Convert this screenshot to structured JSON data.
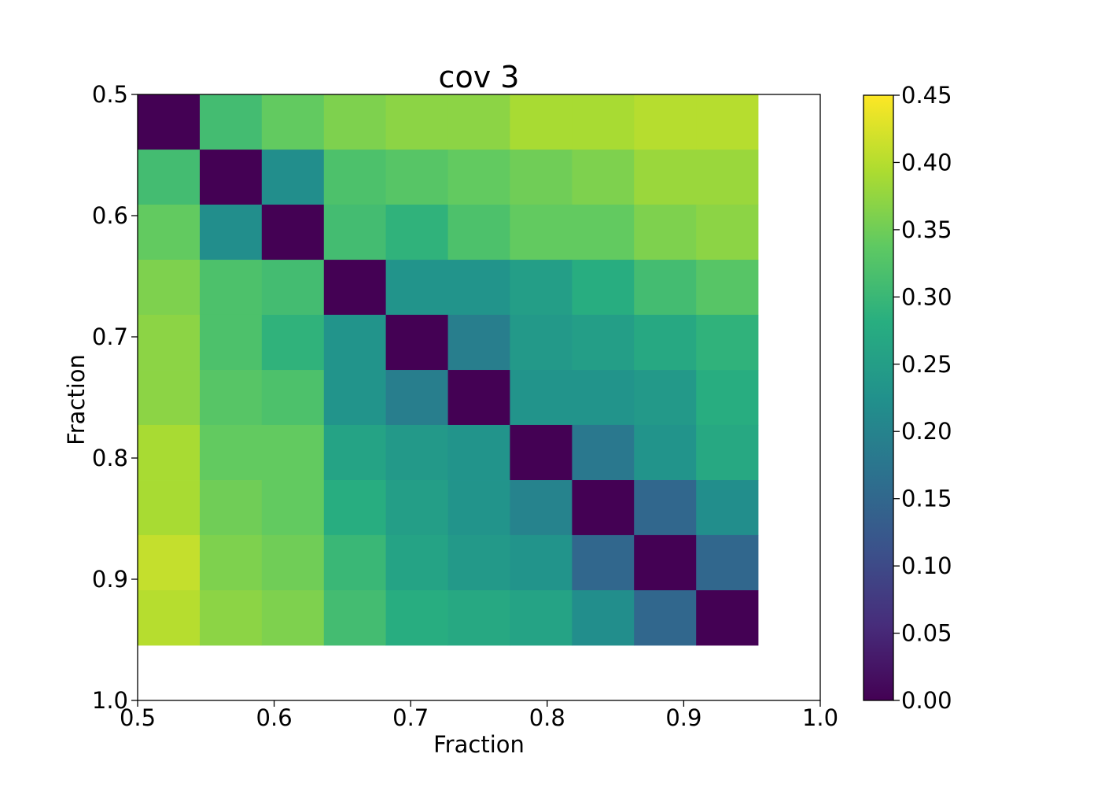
{
  "chart_data": {
    "type": "heatmap",
    "title": "cov 3",
    "xlabel": "Fraction",
    "ylabel": "Fraction",
    "xlim": [
      0.5,
      1.0
    ],
    "ylim": [
      1.0,
      0.5
    ],
    "x_ticks": [
      "0.5",
      "0.6",
      "0.7",
      "0.8",
      "0.9",
      "1.0"
    ],
    "y_ticks": [
      "0.5",
      "0.6",
      "0.7",
      "0.8",
      "0.9",
      "1.0"
    ],
    "x_edges": [
      0.5,
      0.5455,
      0.5909,
      0.6364,
      0.6818,
      0.7273,
      0.7727,
      0.8182,
      0.8636,
      0.9091,
      0.9545
    ],
    "y_edges": [
      0.5,
      0.5455,
      0.5909,
      0.6364,
      0.6818,
      0.7273,
      0.7727,
      0.8182,
      0.8636,
      0.9091,
      0.9545
    ],
    "colormap": "viridis",
    "colorbar": {
      "range": [
        0.0,
        0.45
      ],
      "ticks": [
        "0.00",
        "0.05",
        "0.10",
        "0.15",
        "0.20",
        "0.25",
        "0.30",
        "0.35",
        "0.40",
        "0.45"
      ]
    },
    "matrix": [
      [
        0.0,
        0.31,
        0.34,
        0.36,
        0.37,
        0.37,
        0.39,
        0.39,
        0.4,
        0.4
      ],
      [
        0.31,
        0.0,
        0.22,
        0.32,
        0.33,
        0.34,
        0.35,
        0.36,
        0.38,
        0.38
      ],
      [
        0.34,
        0.22,
        0.0,
        0.31,
        0.29,
        0.32,
        0.34,
        0.34,
        0.36,
        0.37
      ],
      [
        0.36,
        0.32,
        0.31,
        0.0,
        0.23,
        0.23,
        0.25,
        0.28,
        0.31,
        0.33
      ],
      [
        0.37,
        0.32,
        0.29,
        0.23,
        0.0,
        0.19,
        0.24,
        0.25,
        0.27,
        0.29
      ],
      [
        0.37,
        0.33,
        0.32,
        0.23,
        0.19,
        0.0,
        0.23,
        0.23,
        0.24,
        0.28
      ],
      [
        0.39,
        0.34,
        0.34,
        0.26,
        0.24,
        0.23,
        0.0,
        0.18,
        0.23,
        0.27
      ],
      [
        0.39,
        0.35,
        0.34,
        0.28,
        0.25,
        0.23,
        0.2,
        0.0,
        0.15,
        0.22
      ],
      [
        0.41,
        0.36,
        0.35,
        0.3,
        0.26,
        0.24,
        0.23,
        0.15,
        0.0,
        0.15
      ],
      [
        0.4,
        0.37,
        0.36,
        0.31,
        0.28,
        0.27,
        0.26,
        0.22,
        0.15,
        0.0
      ]
    ]
  }
}
